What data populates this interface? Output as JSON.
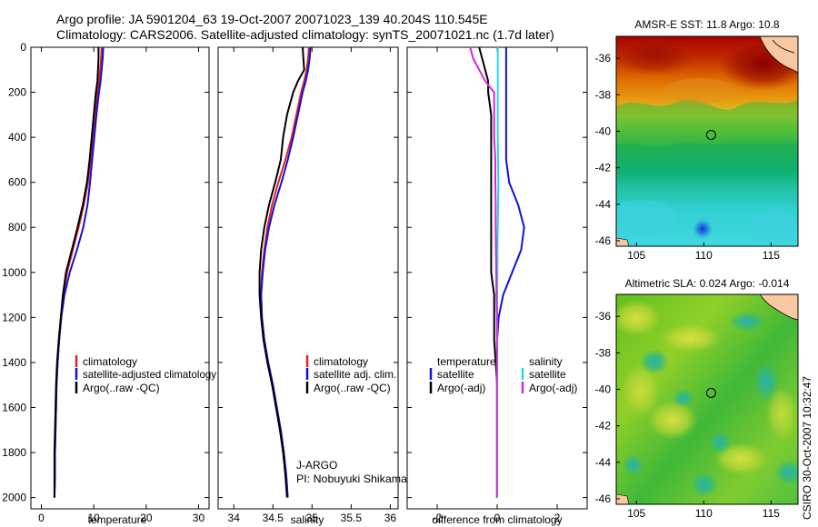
{
  "header": {
    "title_line1": "Argo profile: JA 5901204_63 19-Oct-2007 20071023_139 40.204S 110.545E",
    "title_line2": "Climatology: CARS2006. Satellite-adjusted climatology: synTS_20071021.nc (1.7d later)"
  },
  "footer": {
    "credit": "CSIRO 30-Oct-2007 10:32:47"
  },
  "colors": {
    "climatology": "#e02020",
    "satellite": "#1010dd",
    "argo": "#000000",
    "salinity_satellite": "#22dddd",
    "salinity_argo": "#dd22dd"
  },
  "chart_data": [
    {
      "type": "line",
      "name": "temperature-profile",
      "xlabel": "temperature",
      "ylabel": "",
      "xlim": [
        -2,
        32
      ],
      "ylim": [
        2050,
        0
      ],
      "xticks": [
        0,
        10,
        20,
        30
      ],
      "yticks": [
        0,
        200,
        400,
        600,
        800,
        1000,
        1200,
        1400,
        1600,
        1800,
        2000
      ],
      "depth": [
        0,
        50,
        100,
        150,
        200,
        300,
        400,
        500,
        600,
        700,
        800,
        900,
        1000,
        1100,
        1200,
        1300,
        1400,
        1500,
        1600,
        1700,
        1800,
        1900,
        2000
      ],
      "series": [
        {
          "name": "climatology",
          "color": "#e02020",
          "values": [
            11.5,
            11.4,
            11.2,
            11.0,
            10.7,
            10.2,
            9.8,
            9.4,
            8.9,
            8.1,
            7.1,
            6.0,
            4.9,
            4.2,
            3.8,
            3.4,
            3.1,
            2.9,
            2.8,
            2.7,
            2.6,
            2.6,
            2.5
          ]
        },
        {
          "name": "satellite-adjusted climatology",
          "color": "#1010dd",
          "values": [
            11.8,
            11.7,
            11.5,
            11.3,
            11.0,
            10.5,
            10.1,
            9.7,
            9.3,
            8.8,
            8.0,
            6.8,
            5.4,
            4.4,
            3.8,
            3.4,
            3.1,
            2.9,
            2.8,
            2.7,
            2.6,
            2.6,
            2.5
          ]
        },
        {
          "name": "Argo(..raw -QC)",
          "color": "#000000",
          "values": [
            10.9,
            10.9,
            10.8,
            10.7,
            10.4,
            10.0,
            9.6,
            9.2,
            8.7,
            7.9,
            6.9,
            5.8,
            4.7,
            4.1,
            3.7,
            3.3,
            3.0,
            2.8,
            2.7,
            2.6,
            2.5,
            2.5,
            2.5
          ]
        }
      ],
      "legend": {
        "placement": "center-right",
        "entries": [
          "climatology",
          "satellite-adjusted climatology",
          "Argo(..raw -QC)"
        ]
      }
    },
    {
      "type": "line",
      "name": "salinity-profile",
      "xlabel": "salinity",
      "xlim": [
        33.8,
        36.1
      ],
      "ylim": [
        2050,
        0
      ],
      "xticks": [
        34,
        34.5,
        35,
        35.5,
        36
      ],
      "xticklabels": [
        "34",
        "34.5",
        "35",
        "35.5",
        "36"
      ],
      "depth": [
        0,
        50,
        100,
        150,
        200,
        300,
        400,
        500,
        600,
        700,
        800,
        900,
        1000,
        1100,
        1200,
        1300,
        1400,
        1500,
        1600,
        1700,
        1800,
        1900,
        2000
      ],
      "series": [
        {
          "name": "climatology",
          "color": "#e02020",
          "values": [
            34.96,
            34.95,
            34.93,
            34.9,
            34.86,
            34.8,
            34.74,
            34.66,
            34.57,
            34.49,
            34.43,
            34.39,
            34.36,
            34.35,
            34.36,
            34.39,
            34.44,
            34.5,
            34.55,
            34.6,
            34.64,
            34.67,
            34.69
          ]
        },
        {
          "name": "satellite adj. clim.",
          "color": "#1010dd",
          "values": [
            34.98,
            34.97,
            34.95,
            34.92,
            34.88,
            34.82,
            34.76,
            34.69,
            34.61,
            34.52,
            34.45,
            34.4,
            34.37,
            34.35,
            34.36,
            34.39,
            34.44,
            34.5,
            34.55,
            34.6,
            34.64,
            34.67,
            34.69
          ]
        },
        {
          "name": "Argo(..raw -QC)",
          "color": "#000000",
          "values": [
            34.88,
            34.89,
            34.9,
            34.82,
            34.76,
            34.68,
            34.63,
            34.6,
            34.53,
            34.45,
            34.39,
            34.35,
            34.33,
            34.33,
            34.35,
            34.38,
            34.43,
            34.49,
            34.54,
            34.59,
            34.63,
            34.66,
            34.68
          ]
        }
      ],
      "legend": {
        "placement": "center-right",
        "entries": [
          "climatology",
          "satellite adj. clim.",
          "Argo(..raw -QC)"
        ]
      },
      "annotations": [
        "J-ARGO",
        "PI: Nobuyuki Shikama"
      ]
    },
    {
      "type": "line",
      "name": "difference-profile",
      "xlabel": "difference from climatology",
      "xlim": [
        -3,
        3
      ],
      "ylim": [
        2050,
        0
      ],
      "xticks": [
        -2,
        0,
        2
      ],
      "depth": [
        0,
        50,
        100,
        150,
        200,
        300,
        400,
        500,
        600,
        700,
        800,
        900,
        1000,
        1100,
        1200,
        1300,
        1400,
        1500,
        1600,
        1700,
        1800,
        1900,
        2000
      ],
      "series": [
        {
          "name": "temperature satellite",
          "color": "#1010dd",
          "values": [
            0.3,
            0.3,
            0.3,
            0.3,
            0.3,
            0.3,
            0.3,
            0.3,
            0.4,
            0.7,
            0.9,
            0.8,
            0.5,
            0.2,
            0.05,
            0.0,
            0.0,
            0.0,
            0.0,
            0.0,
            0.0,
            0.0,
            0.0
          ]
        },
        {
          "name": "temperature Argo(-adj)",
          "color": "#000000",
          "values": [
            -0.6,
            -0.5,
            -0.4,
            -0.3,
            -0.3,
            -0.2,
            -0.2,
            -0.2,
            -0.2,
            -0.2,
            -0.2,
            -0.2,
            -0.2,
            -0.1,
            -0.1,
            -0.1,
            -0.05,
            0.0,
            0.0,
            0.0,
            0.0,
            0.0,
            0.0
          ]
        },
        {
          "name": "salinity satellite",
          "color": "#22dddd",
          "values": [
            0.02,
            0.02,
            0.02,
            0.02,
            0.02,
            0.02,
            0.02,
            0.03,
            0.04,
            0.03,
            0.02,
            0.01,
            0.01,
            0.0,
            0.0,
            0.0,
            0.0,
            0.0,
            0.0,
            0.0,
            0.0,
            0.0,
            0.0
          ]
        },
        {
          "name": "salinity Argo(-adj)",
          "color": "#dd22dd",
          "values": [
            -0.9,
            -0.8,
            -0.6,
            -0.4,
            -0.1,
            -0.1,
            -0.1,
            -0.06,
            -0.06,
            -0.05,
            -0.05,
            -0.04,
            -0.03,
            -0.02,
            -0.01,
            -0.01,
            -0.01,
            -0.01,
            -0.01,
            -0.01,
            -0.01,
            -0.01,
            -0.01
          ]
        }
      ],
      "legend": {
        "placement": "center",
        "headers": [
          "temperature",
          "salinity"
        ],
        "entries": [
          "satellite",
          "Argo(-adj)",
          "satellite",
          "Argo(-adj)"
        ]
      }
    },
    {
      "type": "heatmap",
      "name": "sst-map",
      "title": "AMSR-E SST: 11.8 Argo: 10.8",
      "xlim": [
        103.5,
        117
      ],
      "ylim": [
        -46.3,
        -34.8
      ],
      "xticks": [
        105,
        110,
        115
      ],
      "yticks": [
        -36,
        -38,
        -40,
        -42,
        -44,
        -46
      ],
      "marker": {
        "lon": 110.545,
        "lat": -40.204
      }
    },
    {
      "type": "heatmap",
      "name": "sla-map",
      "title": "Altimetric SLA: 0.024 Argo: -0.014",
      "xlim": [
        103.5,
        117
      ],
      "ylim": [
        -46.3,
        -34.8
      ],
      "xticks": [
        105,
        110,
        115
      ],
      "yticks": [
        -36,
        -38,
        -40,
        -42,
        -44,
        -46
      ],
      "marker": {
        "lon": 110.545,
        "lat": -40.204
      }
    }
  ]
}
